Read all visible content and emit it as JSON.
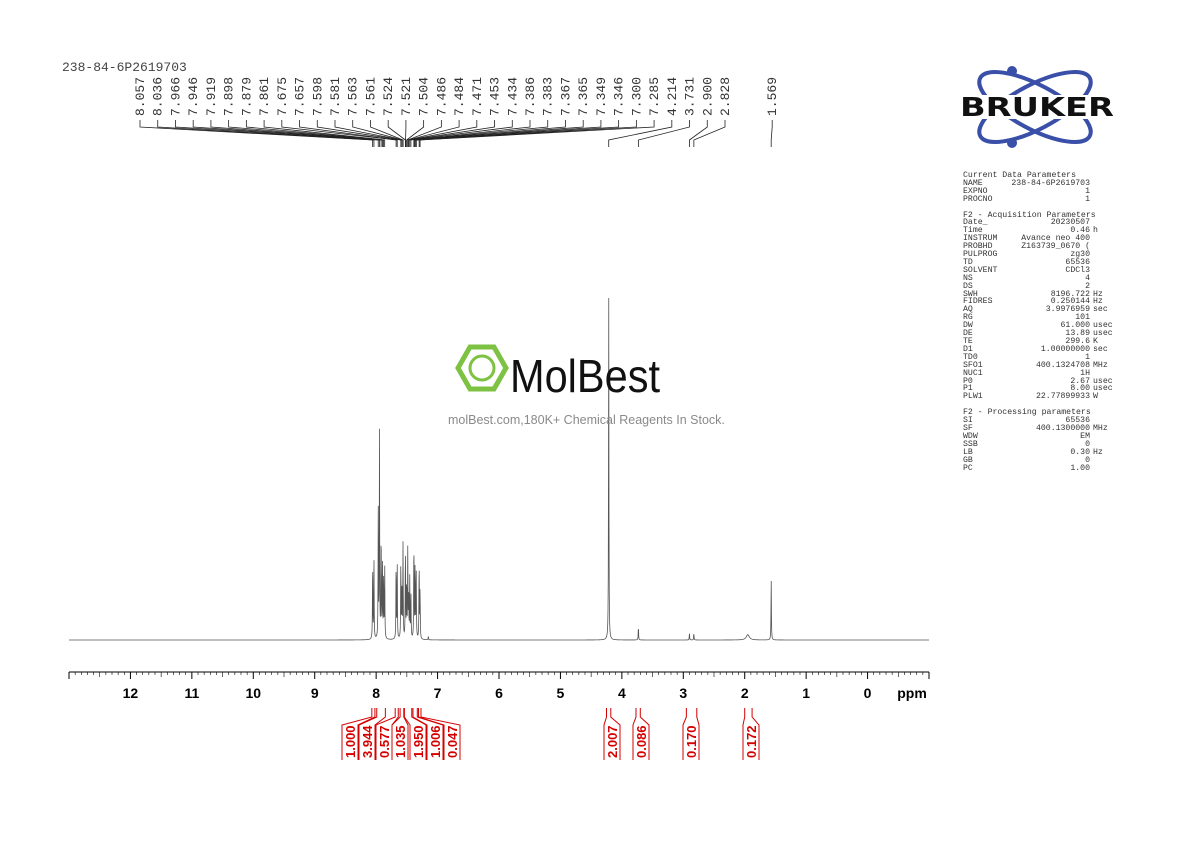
{
  "title": "238-84-6P2619703",
  "watermark": {
    "logo_text": "MolBest",
    "caption": "molBest.com,180K+ Chemical Reagents In Stock.",
    "color": "#7dc242"
  },
  "brand_logo": {
    "text": "BRUKER",
    "orbit_color": "#3a4fa8",
    "text_color": "#111111"
  },
  "parameters": {
    "sections": [
      {
        "heading": "Current Data Parameters",
        "rows": [
          [
            "NAME",
            "238-84-6P2619703",
            ""
          ],
          [
            "EXPNO",
            "1",
            ""
          ],
          [
            "PROCNO",
            "1",
            ""
          ]
        ]
      },
      {
        "heading": "F2 - Acquisition Parameters",
        "rows": [
          [
            "Date_",
            "20230507",
            ""
          ],
          [
            "Time",
            "0.46",
            "h"
          ],
          [
            "INSTRUM",
            "Avance neo 400",
            ""
          ],
          [
            "PROBHD",
            "Z163739_0670 (",
            ""
          ],
          [
            "PULPROG",
            "zg30",
            ""
          ],
          [
            "TD",
            "65536",
            ""
          ],
          [
            "SOLVENT",
            "CDCl3",
            ""
          ],
          [
            "NS",
            "4",
            ""
          ],
          [
            "DS",
            "2",
            ""
          ],
          [
            "SWH",
            "8196.722",
            "Hz"
          ],
          [
            "FIDRES",
            "0.250144",
            "Hz"
          ],
          [
            "AQ",
            "3.9976959",
            "sec"
          ],
          [
            "RG",
            "101",
            ""
          ],
          [
            "DW",
            "61.000",
            "usec"
          ],
          [
            "DE",
            "13.89",
            "usec"
          ],
          [
            "TE",
            "299.6",
            "K"
          ],
          [
            "D1",
            "1.00000000",
            "sec"
          ],
          [
            "TD0",
            "1",
            ""
          ],
          [
            "SFO1",
            "400.1324708",
            "MHz"
          ],
          [
            "NUC1",
            "1H",
            ""
          ],
          [
            "P0",
            "2.67",
            "usec"
          ],
          [
            "P1",
            "8.00",
            "usec"
          ],
          [
            "PLW1",
            "22.77899933",
            "W"
          ]
        ]
      },
      {
        "heading": "F2 - Processing parameters",
        "rows": [
          [
            "SI",
            "65536",
            ""
          ],
          [
            "SF",
            "400.1300000",
            "MHz"
          ],
          [
            "WDW",
            "EM",
            ""
          ],
          [
            "SSB",
            "0",
            ""
          ],
          [
            "LB",
            "0.30",
            "Hz"
          ],
          [
            "GB",
            "0",
            ""
          ],
          [
            "PC",
            "1.00",
            ""
          ]
        ]
      }
    ]
  },
  "chart_data": {
    "type": "line",
    "title": "238-84-6P2619703",
    "xlabel": "ppm",
    "x_reversed": true,
    "xlim": [
      13,
      -1
    ],
    "x_ticks": [
      "12",
      "11",
      "10",
      "9",
      "8",
      "7",
      "6",
      "5",
      "4",
      "3",
      "2",
      "1",
      "0"
    ],
    "grid": false,
    "line_color": "#555555",
    "integral_color": "#d40000",
    "peaks": [
      {
        "ppm": 8.057,
        "label": "8.057",
        "intensity": 23
      },
      {
        "ppm": 8.036,
        "label": "8.036",
        "intensity": 24
      },
      {
        "ppm": 7.966,
        "label": "7.966",
        "intensity": 36
      },
      {
        "ppm": 7.946,
        "label": "7.946",
        "intensity": 60
      },
      {
        "ppm": 7.919,
        "label": "7.919",
        "intensity": 32
      },
      {
        "ppm": 7.898,
        "label": "7.898",
        "intensity": 24
      },
      {
        "ppm": 7.879,
        "label": "7.879",
        "intensity": 18
      },
      {
        "ppm": 7.861,
        "label": "7.861",
        "intensity": 22
      },
      {
        "ppm": 7.675,
        "label": "7.675",
        "intensity": 23
      },
      {
        "ppm": 7.657,
        "label": "7.657",
        "intensity": 21
      },
      {
        "ppm": 7.598,
        "label": "7.598",
        "intensity": 23
      },
      {
        "ppm": 7.581,
        "label": "7.581",
        "intensity": 17
      },
      {
        "ppm": 7.563,
        "label": "7.563",
        "intensity": 22
      },
      {
        "ppm": 7.561,
        "label": "7.561",
        "intensity": 6
      },
      {
        "ppm": 7.524,
        "label": "7.524",
        "intensity": 22
      },
      {
        "ppm": 7.521,
        "label": "7.521",
        "intensity": 6
      },
      {
        "ppm": 7.504,
        "label": "7.504",
        "intensity": 17
      },
      {
        "ppm": 7.486,
        "label": "7.486",
        "intensity": 20
      },
      {
        "ppm": 7.484,
        "label": "7.484",
        "intensity": 6
      },
      {
        "ppm": 7.471,
        "label": "7.471",
        "intensity": 14
      },
      {
        "ppm": 7.453,
        "label": "7.453",
        "intensity": 17
      },
      {
        "ppm": 7.434,
        "label": "7.434",
        "intensity": 14
      },
      {
        "ppm": 7.386,
        "label": "7.386",
        "intensity": 24
      },
      {
        "ppm": 7.383,
        "label": "7.383",
        "intensity": 6
      },
      {
        "ppm": 7.367,
        "label": "7.367",
        "intensity": 16
      },
      {
        "ppm": 7.365,
        "label": "7.365",
        "intensity": 5
      },
      {
        "ppm": 7.349,
        "label": "7.349",
        "intensity": 18
      },
      {
        "ppm": 7.346,
        "label": "7.346",
        "intensity": 5
      },
      {
        "ppm": 7.3,
        "label": "7.300",
        "intensity": 23
      },
      {
        "ppm": 7.285,
        "label": "7.285",
        "intensity": 14
      },
      {
        "ppm": 4.214,
        "label": "4.214",
        "intensity": 100
      },
      {
        "ppm": 3.731,
        "label": "3.731",
        "intensity": 4
      },
      {
        "ppm": 2.9,
        "label": "2.900",
        "intensity": 2
      },
      {
        "ppm": 2.828,
        "label": "2.828",
        "intensity": 2
      },
      {
        "ppm": 1.569,
        "label": "1.569",
        "intensity": 18
      }
    ],
    "minor_features": [
      {
        "ppm": 7.15,
        "intensity": 1
      },
      {
        "ppm": 1.95,
        "intensity": 1.5,
        "broad": true
      }
    ],
    "integrals": [
      {
        "from": 8.07,
        "to": 8.02,
        "value": "1.000"
      },
      {
        "from": 7.99,
        "to": 7.85,
        "value": "3.944"
      },
      {
        "from": 7.69,
        "to": 7.64,
        "value": "0.577"
      },
      {
        "from": 7.61,
        "to": 7.55,
        "value": "1.035"
      },
      {
        "from": 7.54,
        "to": 7.42,
        "value": "1.950"
      },
      {
        "from": 7.4,
        "to": 7.33,
        "value": "1.006"
      },
      {
        "from": 7.31,
        "to": 7.27,
        "value": "0.047"
      },
      {
        "from": 4.25,
        "to": 4.18,
        "value": "2.007"
      },
      {
        "from": 3.77,
        "to": 3.7,
        "value": "0.086"
      },
      {
        "from": 2.95,
        "to": 2.78,
        "value": "0.170"
      },
      {
        "from": 2.0,
        "to": 1.88,
        "value": "0.172"
      }
    ]
  }
}
